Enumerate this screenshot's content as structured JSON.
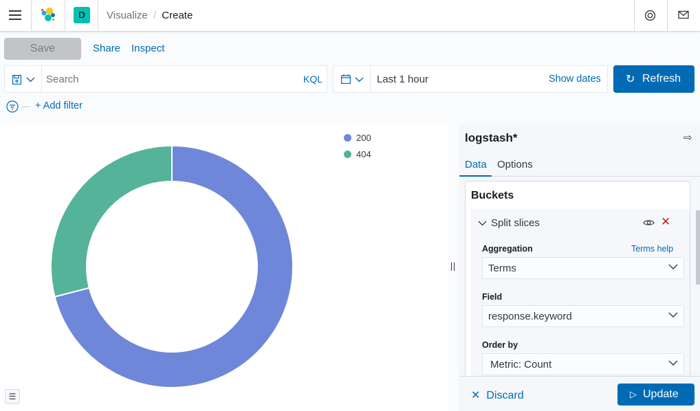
{
  "header": {
    "breadcrumbs": [
      "Visualize",
      "Create"
    ],
    "space_initial": "D",
    "space_color": "#00bfb3"
  },
  "toolbar": {
    "save": "Save",
    "share": "Share",
    "inspect": "Inspect"
  },
  "query": {
    "placeholder": "Search",
    "language": "KQL"
  },
  "time": {
    "range": "Last 1 hour",
    "show_dates": "Show dates",
    "refresh": "Refresh"
  },
  "filter": {
    "add": "+ Add filter"
  },
  "chart_data": {
    "type": "pie",
    "donut": true,
    "categories": [
      "200",
      "404"
    ],
    "values": [
      71,
      29
    ],
    "colors": [
      "#6f87d8",
      "#54b399"
    ],
    "legend": "top-right"
  },
  "sidebar": {
    "index": "logstash*",
    "tabs": [
      "Data",
      "Options"
    ],
    "section": "Buckets",
    "bucket": "Split slices",
    "aggregation_label": "Aggregation",
    "terms_help": "Terms help",
    "aggregation": "Terms",
    "field_label": "Field",
    "field": "response.keyword",
    "order_label": "Order by",
    "order": "Metric: Count",
    "discard": "Discard",
    "update": "Update"
  },
  "colors": {
    "accent": "#006bb4",
    "danger": "#bd271e"
  }
}
